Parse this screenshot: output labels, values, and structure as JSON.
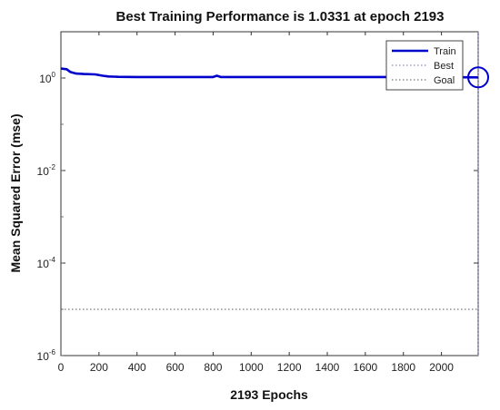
{
  "chart_data": {
    "type": "line",
    "title": "Best Training Performance is 1.0331 at epoch 2193",
    "xlabel": "2193 Epochs",
    "ylabel": "Mean Squared Error  (mse)",
    "x_scale": "linear",
    "y_scale": "log",
    "xlim": [
      0,
      2193
    ],
    "ylim": [
      1e-06,
      10
    ],
    "x_ticks": [
      0,
      200,
      400,
      600,
      800,
      1000,
      1200,
      1400,
      1600,
      1800,
      2000
    ],
    "y_ticks": [
      {
        "base": "10",
        "exp": "0",
        "value": 1
      },
      {
        "base": "10",
        "exp": "-2",
        "value": 0.01
      },
      {
        "base": "10",
        "exp": "-4",
        "value": 0.0001
      },
      {
        "base": "10",
        "exp": "-6",
        "value": 1e-06
      }
    ],
    "series": [
      {
        "name": "Train",
        "color": "#0000cc",
        "style": "solid",
        "points": [
          [
            0,
            1.6
          ],
          [
            30,
            1.55
          ],
          [
            50,
            1.35
          ],
          [
            80,
            1.25
          ],
          [
            120,
            1.22
          ],
          [
            180,
            1.2
          ],
          [
            220,
            1.12
          ],
          [
            250,
            1.08
          ],
          [
            300,
            1.06
          ],
          [
            400,
            1.05
          ],
          [
            500,
            1.05
          ],
          [
            600,
            1.05
          ],
          [
            700,
            1.05
          ],
          [
            800,
            1.05
          ],
          [
            820,
            1.12
          ],
          [
            840,
            1.05
          ],
          [
            1000,
            1.05
          ],
          [
            1200,
            1.05
          ],
          [
            1400,
            1.05
          ],
          [
            1600,
            1.05
          ],
          [
            1800,
            1.05
          ],
          [
            2000,
            1.04
          ],
          [
            2193,
            1.0331
          ]
        ]
      },
      {
        "name": "Best",
        "color": "#6666cc",
        "style": "dotted",
        "x": 2193
      },
      {
        "name": "Goal",
        "color": "#555555",
        "style": "dotted",
        "y": 1e-05
      }
    ],
    "best_point": {
      "x": 2193,
      "y": 1.0331
    },
    "legend": {
      "position": "top-right",
      "entries": [
        "Train",
        "Best",
        "Goal"
      ]
    },
    "grid": false
  }
}
